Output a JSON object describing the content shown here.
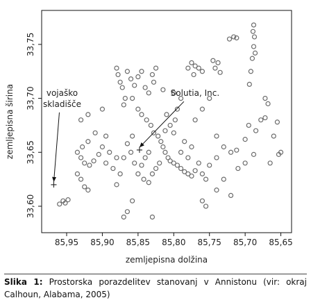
{
  "chart_data": {
    "type": "scatter",
    "xlabel": "zemljepisna dolžina",
    "ylabel": "zemljepisna širina",
    "xlim": [
      85.985,
      85.635
    ],
    "ylim": [
      33.5755,
      33.7815
    ],
    "xticks": [
      {
        "value": 85.95,
        "label": "85,95"
      },
      {
        "value": 85.9,
        "label": "85,90"
      },
      {
        "value": 85.85,
        "label": "85,85"
      },
      {
        "value": 85.8,
        "label": "85,80"
      },
      {
        "value": 85.75,
        "label": "85,75"
      },
      {
        "value": 85.7,
        "label": "85,70"
      },
      {
        "value": 85.65,
        "label": "85,65"
      }
    ],
    "yticks": [
      {
        "value": 33.6,
        "label": "33,60"
      },
      {
        "value": 33.65,
        "label": "33,65"
      },
      {
        "value": 33.7,
        "label": "33,70"
      },
      {
        "value": 33.75,
        "label": "33,75"
      }
    ],
    "color": "#6b6b6b",
    "x": [
      85.688,
      85.689,
      85.687,
      85.688,
      85.686,
      85.69,
      85.692,
      85.694,
      85.722,
      85.716,
      85.712,
      85.738,
      85.742,
      85.745,
      85.735,
      85.76,
      85.765,
      85.77,
      85.775,
      85.78,
      85.772,
      85.88,
      85.878,
      85.875,
      85.872,
      85.868,
      85.865,
      85.86,
      85.855,
      85.85,
      85.845,
      85.84,
      85.835,
      85.83,
      85.828,
      85.825,
      85.87,
      85.858,
      85.85,
      85.845,
      85.838,
      85.832,
      85.828,
      85.822,
      85.818,
      85.815,
      85.812,
      85.808,
      85.805,
      85.8,
      85.795,
      85.79,
      85.785,
      85.78,
      85.775,
      85.77,
      85.765,
      85.76,
      85.755,
      85.75,
      85.82,
      85.825,
      85.83,
      85.812,
      85.805,
      85.8,
      85.798,
      85.81,
      85.835,
      85.84,
      85.845,
      85.85,
      85.855,
      85.86,
      85.865,
      85.858,
      85.87,
      85.842,
      85.835,
      85.79,
      85.78,
      85.775,
      85.785,
      85.795,
      85.79,
      85.8,
      85.815,
      85.88,
      85.89,
      85.9,
      85.905,
      85.912,
      85.918,
      85.925,
      85.93,
      85.935,
      85.928,
      85.92,
      85.91,
      85.895,
      85.895,
      85.885,
      85.875,
      85.88,
      85.93,
      85.925,
      85.92,
      85.935,
      85.952,
      85.948,
      85.955,
      85.96,
      85.87,
      85.865,
      85.83,
      85.858,
      85.76,
      85.755,
      85.74,
      85.72,
      85.73,
      85.74,
      85.73,
      85.72,
      85.712,
      85.7,
      85.695,
      85.685,
      85.678,
      85.672,
      85.668,
      85.672,
      85.655,
      85.66,
      85.65,
      85.653,
      85.665,
      85.688,
      85.7,
      85.71,
      85.76,
      85.77,
      85.74,
      85.75,
      85.92,
      85.93,
      85.9
    ],
    "values": [
      33.768,
      33.762,
      33.757,
      33.748,
      33.742,
      33.737,
      33.725,
      33.713,
      33.755,
      33.757,
      33.756,
      33.733,
      33.728,
      33.735,
      33.724,
      33.725,
      33.728,
      33.73,
      33.733,
      33.728,
      33.722,
      33.728,
      33.722,
      33.715,
      33.71,
      33.7,
      33.725,
      33.718,
      33.712,
      33.72,
      33.725,
      33.71,
      33.705,
      33.722,
      33.715,
      33.728,
      33.694,
      33.7,
      33.69,
      33.685,
      33.68,
      33.675,
      33.668,
      33.665,
      33.66,
      33.655,
      33.65,
      33.645,
      33.642,
      33.64,
      33.638,
      33.635,
      33.632,
      33.63,
      33.628,
      33.633,
      33.64,
      33.63,
      33.625,
      33.638,
      33.64,
      33.635,
      33.63,
      33.67,
      33.675,
      33.668,
      33.68,
      33.685,
      33.65,
      33.645,
      33.638,
      33.63,
      33.64,
      33.65,
      33.658,
      33.665,
      33.645,
      33.625,
      33.622,
      33.65,
      33.645,
      33.655,
      33.66,
      33.69,
      33.7,
      33.705,
      33.708,
      33.645,
      33.65,
      33.655,
      33.648,
      33.642,
      33.638,
      33.64,
      33.645,
      33.65,
      33.655,
      33.66,
      33.668,
      33.665,
      33.64,
      33.635,
      33.63,
      33.62,
      33.625,
      33.618,
      33.615,
      33.63,
      33.603,
      33.606,
      33.605,
      33.602,
      33.59,
      33.595,
      33.59,
      33.605,
      33.605,
      33.6,
      33.615,
      33.61,
      33.625,
      33.645,
      33.655,
      33.65,
      33.652,
      33.662,
      33.675,
      33.67,
      33.68,
      33.682,
      33.695,
      33.7,
      33.678,
      33.665,
      33.65,
      33.648,
      33.64,
      33.648,
      33.64,
      33.635,
      33.69,
      33.68,
      33.665,
      33.7,
      33.685,
      33.68,
      33.69
    ],
    "annotations": [
      {
        "lines": [
          "vojaško",
          "skladišče"
        ],
        "x": 85.968,
        "y": 33.62
      },
      {
        "lines": [
          "Solutia, Inc."
        ],
        "x": 85.848,
        "y": 33.652
      }
    ]
  },
  "caption_label": "Slika 1:",
  "caption": "Prostorska porazdelitev stanovanj v Annistonu (vir: okraj Calhoun, Alabama, 2005)"
}
